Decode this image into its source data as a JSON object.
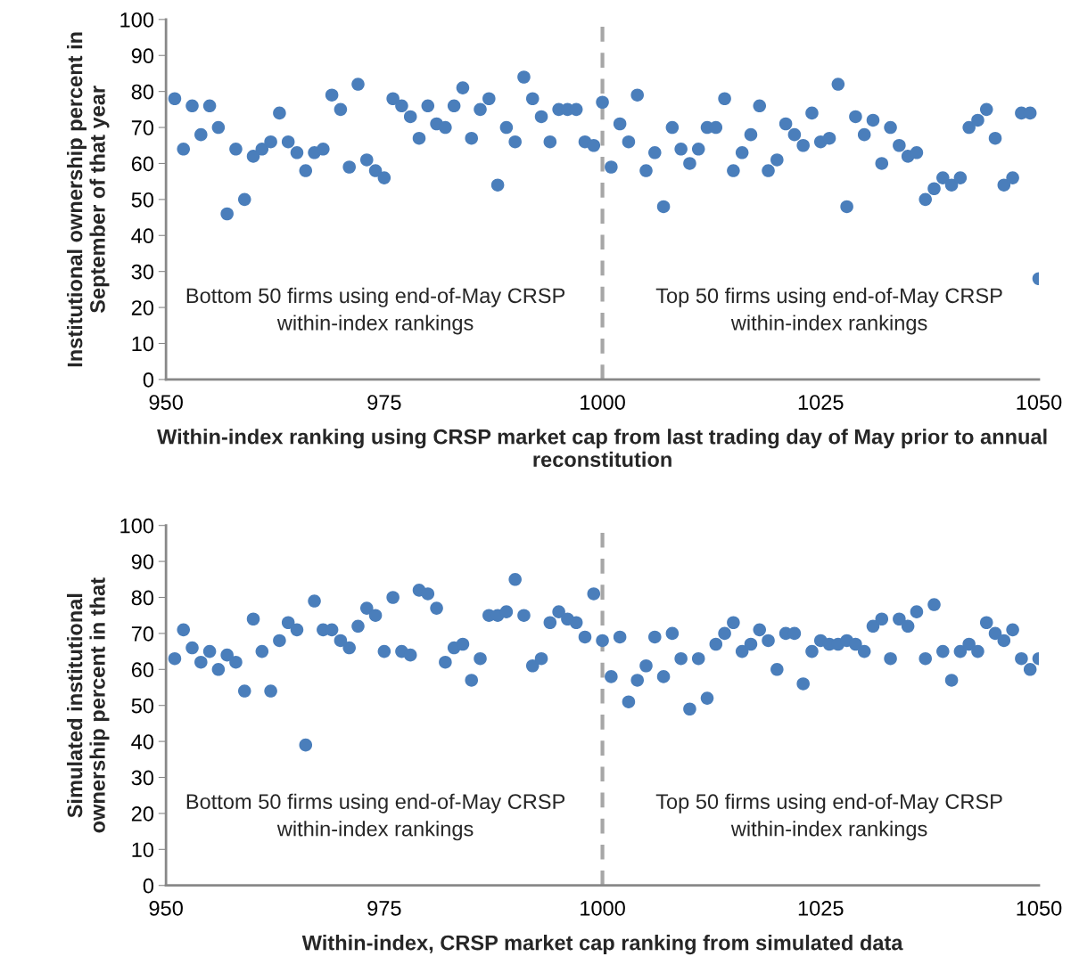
{
  "chart_data": [
    {
      "type": "scatter",
      "xlabel": "Within-index ranking using CRSP market cap from last trading day of May prior to annual reconstitution",
      "ylabel": "Institutional ownership percent in\nSeptember of that year",
      "x": [
        951,
        952,
        953,
        954,
        955,
        956,
        957,
        958,
        959,
        960,
        961,
        962,
        963,
        964,
        965,
        966,
        967,
        968,
        969,
        970,
        971,
        972,
        973,
        974,
        975,
        976,
        977,
        978,
        979,
        980,
        981,
        982,
        983,
        984,
        985,
        986,
        987,
        988,
        989,
        990,
        991,
        992,
        993,
        994,
        995,
        996,
        997,
        998,
        999,
        1000,
        1001,
        1002,
        1003,
        1004,
        1005,
        1006,
        1007,
        1008,
        1009,
        1010,
        1011,
        1012,
        1013,
        1014,
        1015,
        1016,
        1017,
        1018,
        1019,
        1020,
        1021,
        1022,
        1023,
        1024,
        1025,
        1026,
        1027,
        1028,
        1029,
        1030,
        1031,
        1032,
        1033,
        1034,
        1035,
        1036,
        1037,
        1038,
        1039,
        1040,
        1041,
        1042,
        1043,
        1044,
        1045,
        1046,
        1047,
        1048,
        1049,
        1050
      ],
      "series": [
        {
          "color": "#4a7ebb",
          "values": [
            78,
            64,
            76,
            68,
            76,
            70,
            46,
            64,
            50,
            62,
            64,
            66,
            74,
            66,
            63,
            58,
            63,
            64,
            79,
            75,
            59,
            82,
            61,
            58,
            56,
            78,
            76,
            73,
            67,
            76,
            71,
            70,
            76,
            81,
            67,
            75,
            78,
            54,
            70,
            66,
            84,
            78,
            73,
            66,
            75,
            75,
            75,
            66,
            65,
            77,
            59,
            71,
            66,
            79,
            58,
            63,
            48,
            70,
            64,
            60,
            64,
            70,
            70,
            78,
            58,
            63,
            68,
            76,
            58,
            61,
            71,
            68,
            65,
            74,
            66,
            67,
            82,
            48,
            73,
            68,
            72,
            60,
            70,
            65,
            62,
            63,
            50,
            53,
            56,
            54,
            56,
            70,
            72,
            75,
            67,
            54,
            56,
            74,
            74,
            28
          ]
        }
      ],
      "xlim": [
        950,
        1050
      ],
      "xticks": [
        950,
        975,
        1000,
        1025,
        1050
      ],
      "ylim": [
        0,
        100
      ],
      "yticks": [
        0,
        10,
        20,
        30,
        40,
        50,
        60,
        70,
        80,
        90,
        100
      ],
      "marker": "circle",
      "grid": false,
      "legend": false,
      "ref_lines": [
        {
          "axis": "x",
          "value": 1000,
          "color": "#a6a6a6",
          "line_style": "dashed"
        }
      ],
      "annotations": [
        "Bottom 50 firms using end-of-May CRSP\nwithin-index rankings",
        "Top 50 firms using end-of-May CRSP\nwithin-index rankings"
      ]
    },
    {
      "type": "scatter",
      "xlabel": "Within-index, CRSP market cap ranking from simulated data",
      "ylabel": "Simulated institutional\nownership percent in that",
      "x": [
        951,
        952,
        953,
        954,
        955,
        956,
        957,
        958,
        959,
        960,
        961,
        962,
        963,
        964,
        965,
        966,
        967,
        968,
        969,
        970,
        971,
        972,
        973,
        974,
        975,
        976,
        977,
        978,
        979,
        980,
        981,
        982,
        983,
        984,
        985,
        986,
        987,
        988,
        989,
        990,
        991,
        992,
        993,
        994,
        995,
        996,
        997,
        998,
        999,
        1000,
        1001,
        1002,
        1003,
        1004,
        1005,
        1006,
        1007,
        1008,
        1009,
        1010,
        1011,
        1012,
        1013,
        1014,
        1015,
        1016,
        1017,
        1018,
        1019,
        1020,
        1021,
        1022,
        1023,
        1024,
        1025,
        1026,
        1027,
        1028,
        1029,
        1030,
        1031,
        1032,
        1033,
        1034,
        1035,
        1036,
        1037,
        1038,
        1039,
        1040,
        1041,
        1042,
        1043,
        1044,
        1045,
        1046,
        1047,
        1048,
        1049,
        1050
      ],
      "series": [
        {
          "color": "#4a7ebb",
          "values": [
            63,
            71,
            66,
            62,
            65,
            60,
            64,
            62,
            54,
            74,
            65,
            54,
            68,
            73,
            71,
            39,
            79,
            71,
            71,
            68,
            66,
            72,
            77,
            75,
            65,
            80,
            65,
            64,
            82,
            81,
            77,
            62,
            66,
            67,
            57,
            63,
            75,
            75,
            76,
            85,
            75,
            61,
            63,
            73,
            76,
            74,
            73,
            69,
            81,
            68,
            58,
            69,
            51,
            57,
            61,
            69,
            58,
            70,
            63,
            49,
            63,
            52,
            67,
            70,
            73,
            65,
            67,
            71,
            68,
            60,
            70,
            70,
            56,
            65,
            68,
            67,
            67,
            68,
            67,
            65,
            72,
            74,
            63,
            74,
            72,
            76,
            63,
            78,
            65,
            57,
            65,
            67,
            65,
            73,
            70,
            68,
            71,
            63,
            60,
            63
          ]
        }
      ],
      "xlim": [
        950,
        1050
      ],
      "xticks": [
        950,
        975,
        1000,
        1025,
        1050
      ],
      "ylim": [
        0,
        100
      ],
      "yticks": [
        0,
        10,
        20,
        30,
        40,
        50,
        60,
        70,
        80,
        90,
        100
      ],
      "marker": "circle",
      "grid": false,
      "legend": false,
      "ref_lines": [
        {
          "axis": "x",
          "value": 1000,
          "color": "#a6a6a6",
          "line_style": "dashed"
        }
      ],
      "annotations": [
        "Bottom 50 firms using end-of-May CRSP\nwithin-index rankings",
        "Top 50 firms using end-of-May CRSP\nwithin-index rankings"
      ]
    }
  ]
}
